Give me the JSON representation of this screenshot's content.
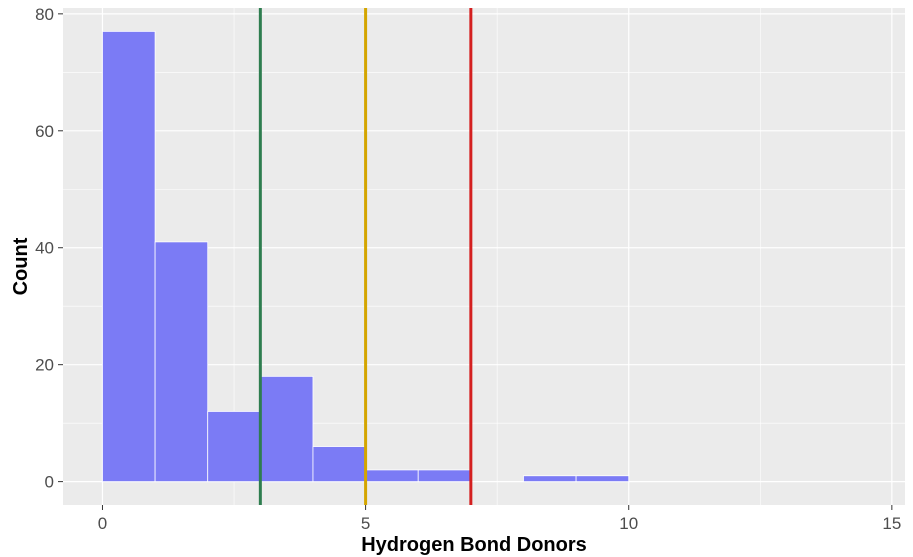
{
  "chart_data": {
    "type": "bar",
    "title": "",
    "xlabel": "Hydrogen Bond Donors",
    "ylabel": "Count",
    "xlim": [
      -0.75,
      15.25
    ],
    "ylim": [
      -4,
      81
    ],
    "x_ticks": [
      0,
      5,
      10,
      15
    ],
    "x_tick_labels": [
      "0",
      "5",
      "10",
      "15"
    ],
    "y_ticks": [
      0,
      20,
      40,
      60,
      80
    ],
    "y_tick_labels": [
      "0",
      "20",
      "40",
      "60",
      "80"
    ],
    "grid": true,
    "bin_width": 1,
    "bins": [
      {
        "start": 0,
        "end": 1,
        "count": 77
      },
      {
        "start": 1,
        "end": 2,
        "count": 41
      },
      {
        "start": 2,
        "end": 3,
        "count": 12
      },
      {
        "start": 3,
        "end": 4,
        "count": 18
      },
      {
        "start": 4,
        "end": 5,
        "count": 6
      },
      {
        "start": 5,
        "end": 6,
        "count": 2
      },
      {
        "start": 6,
        "end": 7,
        "count": 2
      },
      {
        "start": 7,
        "end": 8,
        "count": 0
      },
      {
        "start": 8,
        "end": 9,
        "count": 1
      },
      {
        "start": 9,
        "end": 10,
        "count": 1
      }
    ],
    "vertical_lines": [
      {
        "x": 3,
        "color": "#2e7d4f"
      },
      {
        "x": 5,
        "color": "#d4a500"
      },
      {
        "x": 7,
        "color": "#d42020"
      }
    ],
    "bar_color": "#7b7bf5",
    "panel_color": "#ebebeb",
    "grid_color": "#ffffff"
  }
}
